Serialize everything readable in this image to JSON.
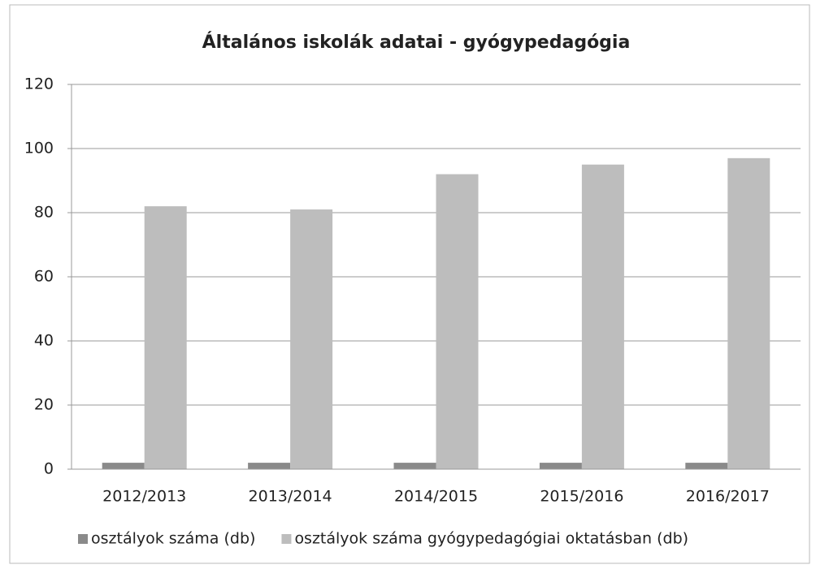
{
  "chart_data": {
    "type": "bar",
    "title": "Általános iskolák adatai - gyógypedagógia",
    "categories": [
      "2012/2013",
      "2013/2014",
      "2014/2015",
      "2015/2016",
      "2016/2017"
    ],
    "series": [
      {
        "name": "osztályok száma (db)",
        "color": "#8a8a8a",
        "values": [
          2,
          2,
          2,
          2,
          2
        ]
      },
      {
        "name": "osztályok száma gyógypedagógiai oktatásban (db)",
        "color": "#bdbdbd",
        "values": [
          82,
          81,
          92,
          95,
          97
        ]
      }
    ],
    "ylim": [
      0,
      120
    ],
    "yticks": [
      0,
      20,
      40,
      60,
      80,
      100,
      120
    ],
    "grid": true,
    "legend": "bottom"
  }
}
